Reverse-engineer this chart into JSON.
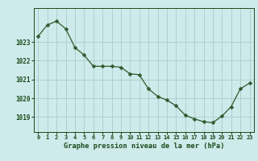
{
  "hours": [
    0,
    1,
    2,
    3,
    4,
    5,
    6,
    7,
    8,
    9,
    10,
    11,
    12,
    13,
    14,
    15,
    16,
    17,
    18,
    19,
    20,
    21,
    22,
    23
  ],
  "pressure": [
    1023.3,
    1023.9,
    1024.1,
    1023.7,
    1022.7,
    1022.3,
    1021.7,
    1021.7,
    1021.7,
    1021.65,
    1021.3,
    1021.25,
    1020.5,
    1020.1,
    1019.9,
    1019.6,
    1019.1,
    1018.9,
    1018.75,
    1018.7,
    1019.05,
    1019.55,
    1020.5,
    1020.8
  ],
  "line_color": "#2d5a2d",
  "marker": "D",
  "marker_size": 2.5,
  "bg_color": "#ceeaea",
  "grid_color": "#aacccc",
  "xlabel": "Graphe pression niveau de la mer (hPa)",
  "xlabel_color": "#1a4a1a",
  "tick_color": "#1a4a1a",
  "ylim": [
    1018.2,
    1024.8
  ],
  "yticks": [
    1019,
    1020,
    1021,
    1022,
    1023
  ],
  "xtick_fontsize": 5.0,
  "ytick_fontsize": 5.5,
  "xlabel_fontsize": 6.2
}
